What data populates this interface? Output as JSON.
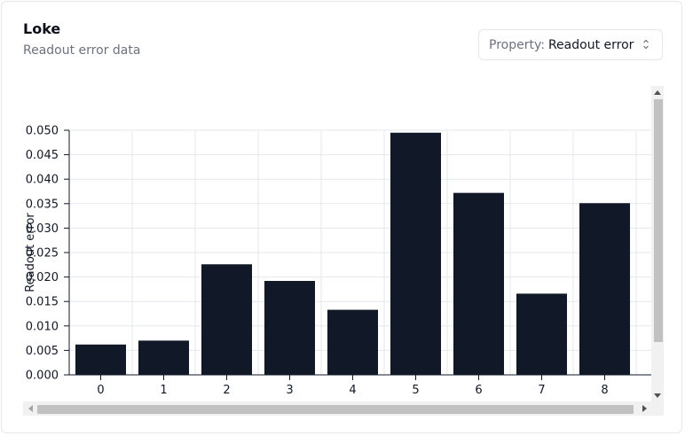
{
  "header": {
    "title": "Loke",
    "subtitle": "Readout error data"
  },
  "property_select": {
    "prefix": "Property:",
    "value": "Readout error",
    "icon": "chevron-up-down-icon"
  },
  "colors": {
    "bar": "#111827",
    "grid": "#e5e7eb",
    "axis": "#111827"
  },
  "chart_data": {
    "type": "bar",
    "title": "",
    "xlabel": "",
    "ylabel": "Readout error",
    "categories": [
      "0",
      "1",
      "2",
      "3",
      "4",
      "5",
      "6",
      "7",
      "8"
    ],
    "values": [
      0.0062,
      0.007,
      0.0226,
      0.0192,
      0.0133,
      0.0495,
      0.0372,
      0.0166,
      0.0351
    ],
    "ylim": [
      0,
      0.05
    ],
    "yticks": [
      "0.000",
      "0.005",
      "0.010",
      "0.015",
      "0.020",
      "0.025",
      "0.030",
      "0.035",
      "0.040",
      "0.045",
      "0.050"
    ],
    "grid": true
  }
}
